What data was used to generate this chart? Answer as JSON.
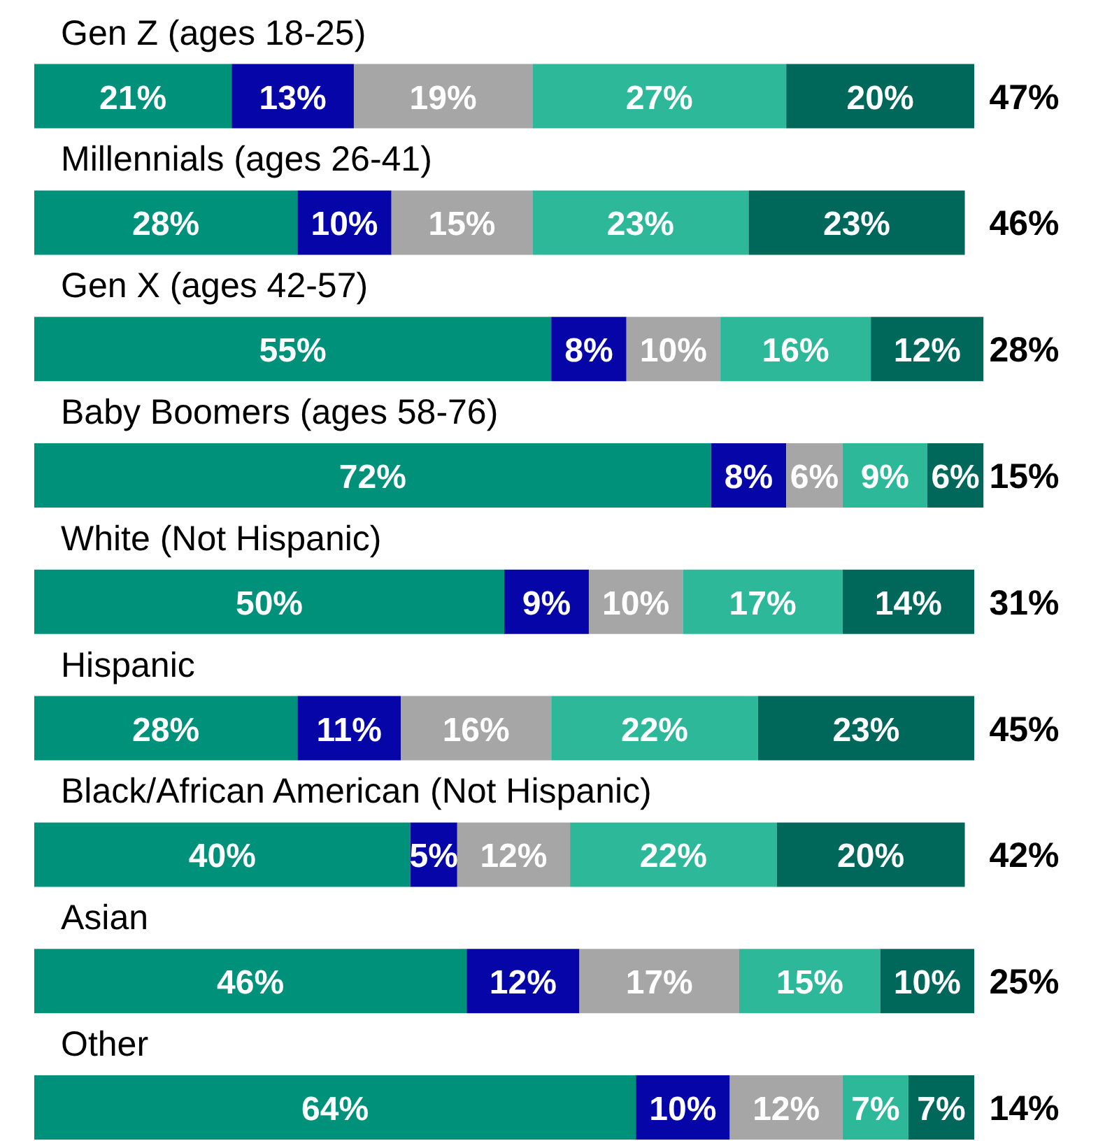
{
  "chart_data": {
    "type": "bar",
    "orientation": "horizontal",
    "stacked": true,
    "tick_labels": "y",
    "categories": [
      "Gen Z (ages 18-25)",
      "Millennials (ages 26-41)",
      "Gen X (ages 42-57)",
      "Baby Boomers (ages 58-76)",
      "White (Not Hispanic)",
      "Hispanic",
      "Black/African American (Not Hispanic)",
      "Asian",
      "Other"
    ],
    "xlim": [
      0,
      101
    ],
    "series": [
      {
        "color": "#00917a",
        "values": [
          21,
          28,
          55,
          72,
          50,
          28,
          40,
          46,
          64
        ],
        "value_labels": [
          "21%",
          "28%",
          "55%",
          "72%",
          "50%",
          "28%",
          "40%",
          "46%",
          "64%"
        ]
      },
      {
        "color": "#0606a8",
        "values": [
          13,
          10,
          8,
          8,
          9,
          11,
          5,
          12,
          10
        ],
        "value_labels": [
          "13%",
          "10%",
          "8%",
          "8%",
          "9%",
          "11%",
          "5%",
          "12%",
          "10%"
        ]
      },
      {
        "color": "#a6a6a6",
        "values": [
          19,
          15,
          10,
          6,
          10,
          16,
          12,
          17,
          12
        ],
        "value_labels": [
          "19%",
          "15%",
          "10%",
          "6%",
          "10%",
          "16%",
          "12%",
          "17%",
          "12%"
        ]
      },
      {
        "color": "#2db899",
        "values": [
          27,
          23,
          16,
          9,
          17,
          22,
          22,
          15,
          7
        ],
        "value_labels": [
          "27%",
          "23%",
          "16%",
          "9%",
          "17%",
          "22%",
          "22%",
          "15%",
          "7%"
        ]
      },
      {
        "color": "#00685a",
        "values": [
          20,
          23,
          12,
          6,
          14,
          23,
          20,
          10,
          7
        ],
        "value_labels": [
          "20%",
          "23%",
          "12%",
          "6%",
          "14%",
          "23%",
          "20%",
          "10%",
          "7%"
        ]
      }
    ],
    "annotations": [
      "47%",
      "46%",
      "28%",
      "15%",
      "31%",
      "45%",
      "42%",
      "25%",
      "14%"
    ]
  }
}
